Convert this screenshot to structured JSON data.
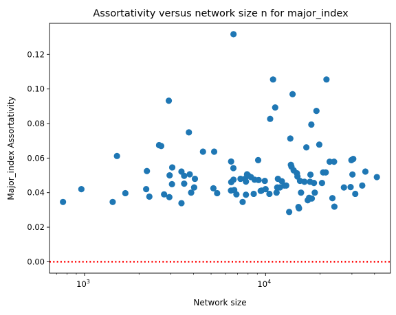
{
  "chart_data": {
    "type": "scatter",
    "title": "Assortativity versus network size n for major_index",
    "xlabel": "Network size",
    "ylabel": "Major_index Assortativity",
    "xscale": "log",
    "xlim": [
      640,
      49000
    ],
    "ylim": [
      -0.0066,
      0.138
    ],
    "grid": false,
    "colors": {
      "points": "#1f77b4",
      "reference_line": "#ff0000"
    },
    "reference_line": {
      "y": 0.0,
      "style": "dotted"
    },
    "x_ticks": [
      {
        "value": 1000,
        "base": "10",
        "exponent": "3"
      },
      {
        "value": 10000,
        "base": "10",
        "exponent": "4"
      }
    ],
    "y_ticks": [
      {
        "value": 0.0,
        "label": "0.00"
      },
      {
        "value": 0.02,
        "label": "0.02"
      },
      {
        "value": 0.04,
        "label": "0.04"
      },
      {
        "value": 0.06,
        "label": "0.06"
      },
      {
        "value": 0.08,
        "label": "0.08"
      },
      {
        "value": 0.1,
        "label": "0.10"
      },
      {
        "value": 0.12,
        "label": "0.12"
      }
    ],
    "points": [
      [
        760,
        0.0346
      ],
      [
        960,
        0.042
      ],
      [
        1430,
        0.0346
      ],
      [
        1510,
        0.0612
      ],
      [
        1680,
        0.0397
      ],
      [
        2190,
        0.042
      ],
      [
        2210,
        0.0525
      ],
      [
        2280,
        0.0377
      ],
      [
        2580,
        0.0675
      ],
      [
        2650,
        0.067
      ],
      [
        2750,
        0.039
      ],
      [
        2920,
        0.0932
      ],
      [
        2940,
        0.0374
      ],
      [
        2950,
        0.05
      ],
      [
        3040,
        0.0449
      ],
      [
        3050,
        0.0546
      ],
      [
        3430,
        0.0522
      ],
      [
        3430,
        0.0339
      ],
      [
        3550,
        0.0497
      ],
      [
        3550,
        0.0452
      ],
      [
        3770,
        0.0749
      ],
      [
        3810,
        0.0506
      ],
      [
        3880,
        0.04
      ],
      [
        4030,
        0.043
      ],
      [
        4070,
        0.048
      ],
      [
        4510,
        0.0637
      ],
      [
        5150,
        0.0425
      ],
      [
        5200,
        0.0637
      ],
      [
        5400,
        0.0397
      ],
      [
        6440,
        0.0412
      ],
      [
        6450,
        0.058
      ],
      [
        6460,
        0.0461
      ],
      [
        6640,
        0.0542
      ],
      [
        6650,
        0.0475
      ],
      [
        6650,
        0.1317
      ],
      [
        6710,
        0.0415
      ],
      [
        6900,
        0.039
      ],
      [
        7270,
        0.048
      ],
      [
        7470,
        0.0346
      ],
      [
        7700,
        0.048
      ],
      [
        7790,
        0.0388
      ],
      [
        7790,
        0.0464
      ],
      [
        7900,
        0.0506
      ],
      [
        8000,
        0.05
      ],
      [
        8300,
        0.049
      ],
      [
        8600,
        0.0393
      ],
      [
        8700,
        0.0475
      ],
      [
        9100,
        0.0588
      ],
      [
        9150,
        0.0473
      ],
      [
        9400,
        0.041
      ],
      [
        9500,
        0.0412
      ],
      [
        9900,
        0.0468
      ],
      [
        10000,
        0.042
      ],
      [
        10500,
        0.0393
      ],
      [
        10600,
        0.0827
      ],
      [
        11000,
        0.1055
      ],
      [
        11300,
        0.0893
      ],
      [
        11500,
        0.04
      ],
      [
        11600,
        0.043
      ],
      [
        11700,
        0.048
      ],
      [
        12000,
        0.043
      ],
      [
        12300,
        0.0466
      ],
      [
        12700,
        0.0441
      ],
      [
        13000,
        0.0441
      ],
      [
        13500,
        0.0288
      ],
      [
        13700,
        0.0713
      ],
      [
        13800,
        0.0561
      ],
      [
        13900,
        0.055
      ],
      [
        14100,
        0.097
      ],
      [
        14300,
        0.0529
      ],
      [
        14900,
        0.0512
      ],
      [
        15000,
        0.0493
      ],
      [
        15200,
        0.0317
      ],
      [
        15300,
        0.0309
      ],
      [
        15500,
        0.0468
      ],
      [
        15700,
        0.04
      ],
      [
        16400,
        0.0463
      ],
      [
        16800,
        0.0662
      ],
      [
        17100,
        0.0356
      ],
      [
        17400,
        0.037
      ],
      [
        17600,
        0.0463
      ],
      [
        17700,
        0.0504
      ],
      [
        17900,
        0.0794
      ],
      [
        18000,
        0.0366
      ],
      [
        18500,
        0.0456
      ],
      [
        18700,
        0.04
      ],
      [
        19100,
        0.0873
      ],
      [
        19800,
        0.0678
      ],
      [
        20500,
        0.0456
      ],
      [
        20800,
        0.0517
      ],
      [
        21500,
        0.0517
      ],
      [
        21700,
        0.1055
      ],
      [
        22600,
        0.0579
      ],
      [
        23400,
        0.0368
      ],
      [
        23900,
        0.0579
      ],
      [
        24000,
        0.0319
      ],
      [
        27100,
        0.043
      ],
      [
        29500,
        0.0432
      ],
      [
        29800,
        0.0588
      ],
      [
        30200,
        0.0505
      ],
      [
        30500,
        0.0595
      ],
      [
        31300,
        0.0393
      ],
      [
        34200,
        0.0441
      ],
      [
        35600,
        0.0522
      ],
      [
        41200,
        0.049
      ]
    ]
  }
}
